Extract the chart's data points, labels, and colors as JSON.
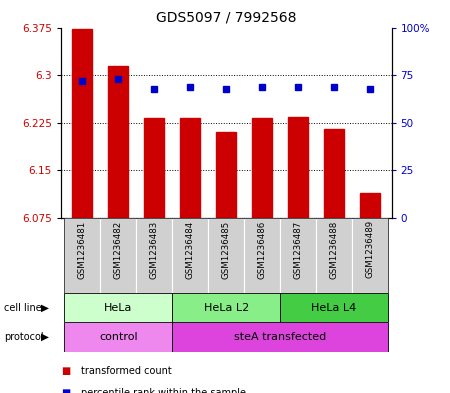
{
  "title": "GDS5097 / 7992568",
  "samples": [
    "GSM1236481",
    "GSM1236482",
    "GSM1236483",
    "GSM1236484",
    "GSM1236485",
    "GSM1236486",
    "GSM1236487",
    "GSM1236488",
    "GSM1236489"
  ],
  "transformed_counts": [
    6.372,
    6.315,
    6.233,
    6.233,
    6.21,
    6.232,
    6.234,
    6.215,
    6.115
  ],
  "percentile_ranks": [
    72,
    73,
    68,
    69,
    68,
    69,
    69,
    69,
    68
  ],
  "y_min": 6.075,
  "y_max": 6.375,
  "y_ticks": [
    6.075,
    6.15,
    6.225,
    6.3,
    6.375
  ],
  "y_right_ticks": [
    0,
    25,
    50,
    75,
    100
  ],
  "y_right_labels": [
    "0",
    "25",
    "50",
    "75",
    "100%"
  ],
  "bar_color": "#cc0000",
  "dot_color": "#0000cc",
  "cell_line_groups": [
    {
      "label": "HeLa",
      "start": 0,
      "end": 3,
      "color": "#ccffcc"
    },
    {
      "label": "HeLa L2",
      "start": 3,
      "end": 6,
      "color": "#88ee88"
    },
    {
      "label": "HeLa L4",
      "start": 6,
      "end": 9,
      "color": "#44cc44"
    }
  ],
  "protocol_groups": [
    {
      "label": "control",
      "start": 0,
      "end": 3,
      "color": "#ee88ee"
    },
    {
      "label": "steA transfected",
      "start": 3,
      "end": 9,
      "color": "#dd44dd"
    }
  ],
  "legend_items": [
    {
      "color": "#cc0000",
      "label": "transformed count"
    },
    {
      "color": "#0000cc",
      "label": "percentile rank within the sample"
    }
  ],
  "tick_label_color_left": "#cc0000",
  "tick_label_color_right": "#0000cc"
}
